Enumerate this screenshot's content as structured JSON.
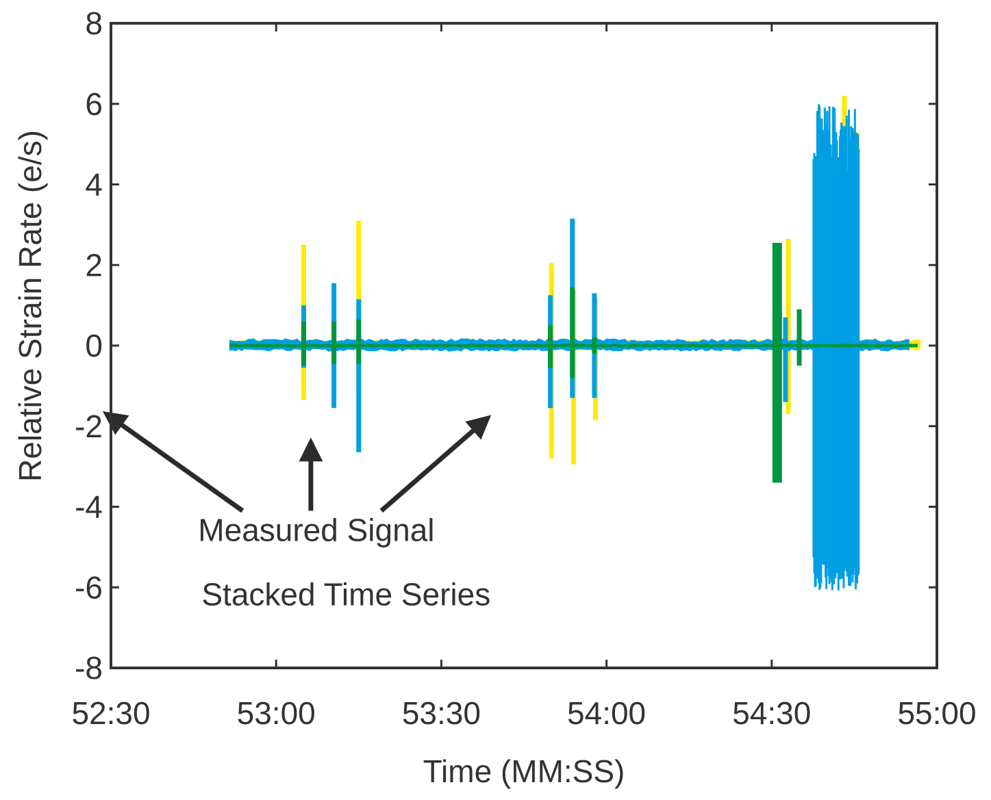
{
  "chart_data": {
    "type": "line",
    "title": "",
    "xlabel": "Time (MM:SS)",
    "ylabel": "Relative Strain Rate (e/s)",
    "xlim": [
      3150,
      3300
    ],
    "ylim": [
      -8,
      8
    ],
    "x_ticks": [
      {
        "value": 3150,
        "label": "52:30"
      },
      {
        "value": 3180,
        "label": "53:00"
      },
      {
        "value": 3210,
        "label": "53:30"
      },
      {
        "value": 3240,
        "label": "54:00"
      },
      {
        "value": 3270,
        "label": "54:30"
      },
      {
        "value": 3300,
        "label": "55:00"
      }
    ],
    "y_ticks": [
      {
        "value": 8,
        "label": "8"
      },
      {
        "value": 6,
        "label": "6"
      },
      {
        "value": 4,
        "label": "4"
      },
      {
        "value": 2,
        "label": "2"
      },
      {
        "value": 0,
        "label": "0"
      },
      {
        "value": -2,
        "label": "-2"
      },
      {
        "value": -4,
        "label": "-4"
      },
      {
        "value": -6,
        "label": "-6"
      },
      {
        "value": -8,
        "label": "-8"
      }
    ],
    "grid": false,
    "series_note": "Each spike: time (s), upper and lower amplitude (e/s)",
    "series": [
      {
        "name": "yellow",
        "color": "#ffea00",
        "baseline": {
          "x_start": 3171.5,
          "x_end": 3297.0,
          "lo": -0.12,
          "hi": 0.15
        },
        "spikes": [
          {
            "x": 3185.0,
            "lo": -1.35,
            "hi": 2.5
          },
          {
            "x": 3190.5,
            "lo": -1.2,
            "hi": 1.4
          },
          {
            "x": 3195.0,
            "lo": -1.1,
            "hi": 3.1
          },
          {
            "x": 3230.0,
            "lo": -2.8,
            "hi": 2.05
          },
          {
            "x": 3234.0,
            "lo": -2.95,
            "hi": 1.4
          },
          {
            "x": 3238.0,
            "lo": -1.85,
            "hi": 1.2
          },
          {
            "x": 3273.0,
            "lo": -1.7,
            "hi": 2.65
          },
          {
            "x": 3283.2,
            "lo": -5.3,
            "hi": 6.2
          },
          {
            "x": 3285.5,
            "lo": -4.2,
            "hi": 5.3
          }
        ],
        "bursts": []
      },
      {
        "name": "blue",
        "color": "#009fe3",
        "baseline": {
          "x_start": 3171.5,
          "x_end": 3295.0,
          "lo": -0.15,
          "hi": 0.18
        },
        "spikes": [
          {
            "x": 3185.0,
            "lo": -0.55,
            "hi": 1.0
          },
          {
            "x": 3190.5,
            "lo": -1.55,
            "hi": 1.55
          },
          {
            "x": 3195.0,
            "lo": -2.65,
            "hi": 1.15
          },
          {
            "x": 3229.8,
            "lo": -1.55,
            "hi": 1.25
          },
          {
            "x": 3233.8,
            "lo": -1.3,
            "hi": 3.15
          },
          {
            "x": 3237.8,
            "lo": -1.3,
            "hi": 1.3
          },
          {
            "x": 3272.5,
            "lo": -1.4,
            "hi": 0.7
          }
        ],
        "bursts": [
          {
            "x_start": 3277.6,
            "x_end": 3285.8,
            "lo": -6.1,
            "hi": 6.0
          }
        ]
      },
      {
        "name": "green",
        "color": "#00963f",
        "baseline": {
          "x_start": 3171.5,
          "x_end": 3296.5,
          "lo": -0.05,
          "hi": 0.05
        },
        "spikes": [
          {
            "x": 3185.0,
            "lo": -0.5,
            "hi": 0.6
          },
          {
            "x": 3190.5,
            "lo": -0.45,
            "hi": 0.6
          },
          {
            "x": 3195.0,
            "lo": -0.45,
            "hi": 0.65
          },
          {
            "x": 3229.8,
            "lo": -0.55,
            "hi": 0.5
          },
          {
            "x": 3233.8,
            "lo": -0.8,
            "hi": 1.45
          },
          {
            "x": 3237.8,
            "lo": -0.2,
            "hi": 0.2
          },
          {
            "x": 3271.0,
            "lo": -3.4,
            "hi": 2.55
          },
          {
            "x": 3275.0,
            "lo": -0.5,
            "hi": 0.9
          }
        ],
        "bursts": []
      }
    ],
    "annotations": {
      "text_1": "Measured Signal",
      "text_2": "Stacked Time Series",
      "arrows": [
        {
          "from": {
            "x": 3173.9,
            "y": -4.1
          },
          "to": {
            "x": 3149.2,
            "y": -1.7
          }
        },
        {
          "from": {
            "x": 3186.3,
            "y": -4.1
          },
          "to": {
            "x": 3186.3,
            "y": -2.4
          }
        },
        {
          "from": {
            "x": 3199.1,
            "y": -4.1
          },
          "to": {
            "x": 3218.4,
            "y": -1.8
          }
        }
      ]
    }
  }
}
